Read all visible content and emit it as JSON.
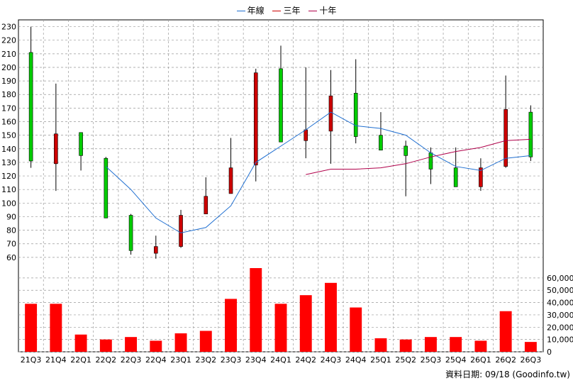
{
  "legend": {
    "items": [
      {
        "label": "年線",
        "color": "#1f6fd1"
      },
      {
        "label": "三年",
        "color": "#cc0000"
      },
      {
        "label": "十年",
        "color": "#b0004a"
      }
    ]
  },
  "footer": {
    "note": "資料日期: 09/18 (Goodinfo.tw)"
  },
  "colors": {
    "up": "#00cc00",
    "down": "#cc0000",
    "volume": "#ff0000",
    "grid": "#999999"
  },
  "chart_data": [
    {
      "type": "candlestick",
      "categories": [
        "21Q3",
        "21Q4",
        "22Q1",
        "22Q2",
        "22Q3",
        "22Q4",
        "23Q1",
        "23Q2",
        "23Q3",
        "23Q4",
        "24Q1",
        "24Q2",
        "24Q3",
        "24Q4",
        "25Q1",
        "25Q2",
        "25Q3",
        "25Q4",
        "26Q1",
        "26Q2",
        "26Q3"
      ],
      "ylim": [
        50,
        235
      ],
      "yticks": [
        60,
        70,
        80,
        90,
        100,
        110,
        120,
        130,
        140,
        150,
        160,
        170,
        180,
        190,
        200,
        210,
        220,
        230
      ],
      "ohlc": [
        {
          "open": 131,
          "high": 230,
          "low": 126,
          "close": 211
        },
        {
          "open": 151,
          "high": 188,
          "low": 109,
          "close": 129
        },
        {
          "open": 135,
          "high": 152,
          "low": 124,
          "close": 152
        },
        {
          "open": 89,
          "high": 134,
          "low": 89,
          "close": 133
        },
        {
          "open": 65,
          "high": 92,
          "low": 62,
          "close": 91
        },
        {
          "open": 68,
          "high": 76,
          "low": 59,
          "close": 63
        },
        {
          "open": 91,
          "high": 95,
          "low": 67,
          "close": 68
        },
        {
          "open": 105,
          "high": 119,
          "low": 92,
          "close": 92
        },
        {
          "open": 126,
          "high": 148,
          "low": 107,
          "close": 107
        },
        {
          "open": 196,
          "high": 199,
          "low": 116,
          "close": 128
        },
        {
          "open": 145,
          "high": 216,
          "low": 145,
          "close": 199
        },
        {
          "open": 154,
          "high": 200,
          "low": 133,
          "close": 146
        },
        {
          "open": 179,
          "high": 198,
          "low": 129,
          "close": 153
        },
        {
          "open": 149,
          "high": 206,
          "low": 144,
          "close": 181
        },
        {
          "open": 139,
          "high": 167,
          "low": 139,
          "close": 150
        },
        {
          "open": 135,
          "high": 146,
          "low": 105,
          "close": 142
        },
        {
          "open": 125,
          "high": 141,
          "low": 114,
          "close": 137
        },
        {
          "open": 112,
          "high": 141,
          "low": 112,
          "close": 126
        },
        {
          "open": 126,
          "high": 133,
          "low": 109,
          "close": 112
        },
        {
          "open": 169,
          "high": 194,
          "low": 126,
          "close": 127
        },
        {
          "open": 134,
          "high": 172,
          "low": 131,
          "close": 167
        }
      ],
      "series": [
        {
          "name": "年線",
          "values": [
            null,
            null,
            null,
            127,
            110,
            89,
            78,
            82,
            98,
            130,
            142,
            154,
            167,
            157,
            155,
            150,
            137,
            127,
            124,
            133,
            135
          ]
        },
        {
          "name": "三年",
          "values": [
            null,
            null,
            null,
            null,
            null,
            null,
            null,
            null,
            null,
            null,
            null,
            null,
            null,
            null,
            null,
            null,
            null,
            null,
            null,
            null,
            null
          ]
        },
        {
          "name": "十年",
          "values": [
            null,
            null,
            null,
            null,
            null,
            null,
            null,
            null,
            null,
            null,
            null,
            121,
            125,
            125,
            126,
            129,
            134,
            138,
            141,
            146,
            147
          ]
        }
      ]
    },
    {
      "type": "bar",
      "categories": [
        "21Q3",
        "21Q4",
        "22Q1",
        "22Q2",
        "22Q3",
        "22Q4",
        "23Q1",
        "23Q2",
        "23Q3",
        "23Q4",
        "24Q1",
        "24Q2",
        "24Q3",
        "24Q4",
        "25Q1",
        "25Q2",
        "25Q3",
        "25Q4",
        "26Q1",
        "26Q2",
        "26Q3"
      ],
      "values": [
        39000,
        39000,
        14000,
        10000,
        12000,
        9000,
        15000,
        17000,
        43000,
        68000,
        39000,
        46000,
        56000,
        36000,
        11000,
        10000,
        12000,
        12000,
        9000,
        33000,
        8000
      ],
      "ylim": [
        0,
        68000
      ],
      "yticks": [
        "0",
        "10,000",
        "20,000",
        "30,000",
        "40,000",
        "50,000",
        "60,000"
      ]
    }
  ]
}
